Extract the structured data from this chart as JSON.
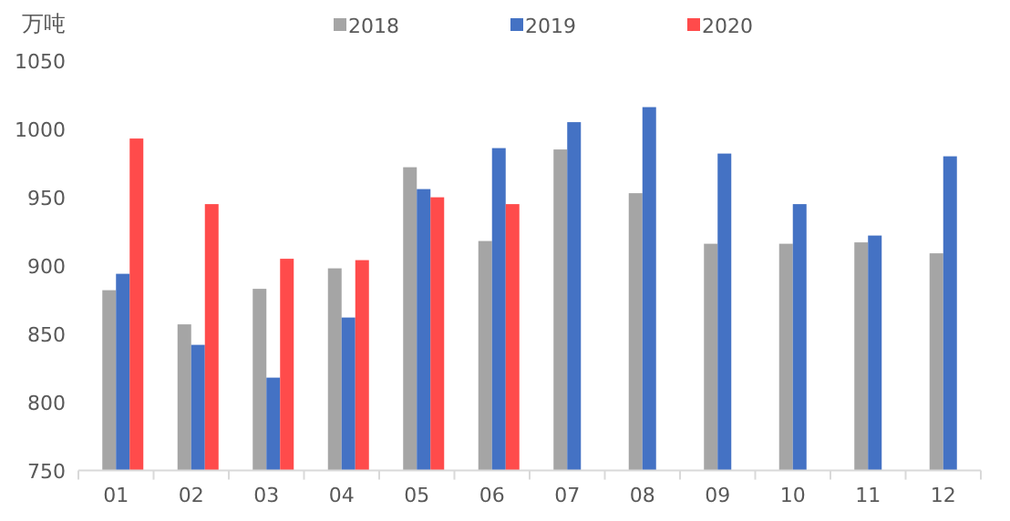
{
  "chart_data": {
    "type": "bar",
    "ylabel": "万吨",
    "categories": [
      "01",
      "02",
      "03",
      "04",
      "05",
      "06",
      "07",
      "08",
      "09",
      "10",
      "11",
      "12"
    ],
    "series": [
      {
        "name": "2018",
        "color": "#a5a5a5",
        "values": [
          882,
          857,
          883,
          898,
          972,
          918,
          985,
          953,
          916,
          916,
          917,
          909
        ]
      },
      {
        "name": "2019",
        "color": "#4472c4",
        "values": [
          894,
          842,
          818,
          862,
          956,
          986,
          1005,
          1016,
          982,
          945,
          922,
          980
        ]
      },
      {
        "name": "2020",
        "color": "#ff4b4b",
        "values": [
          993,
          945,
          905,
          904,
          950,
          945,
          null,
          null,
          null,
          null,
          null,
          null
        ]
      }
    ],
    "ylim": [
      750,
      1050
    ],
    "yticks": [
      750,
      800,
      850,
      900,
      950,
      1000,
      1050
    ],
    "grid": false,
    "legend": "top"
  }
}
